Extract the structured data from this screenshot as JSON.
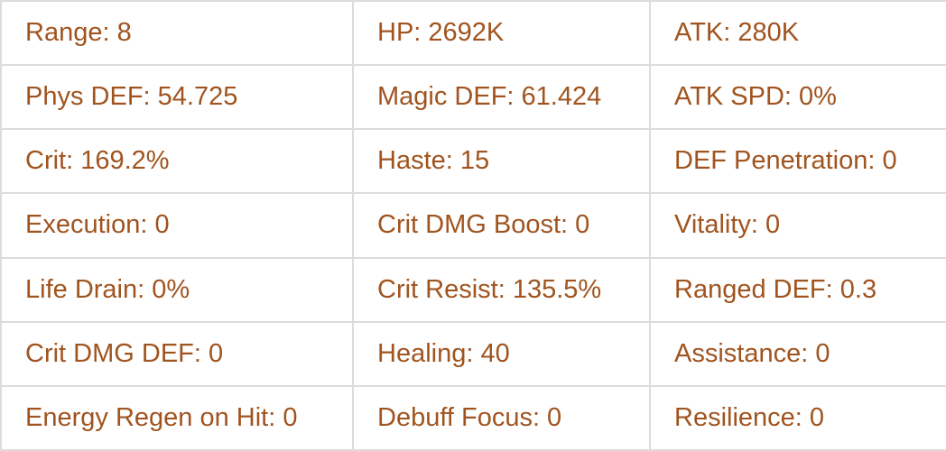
{
  "colors": {
    "text": "#a0541f",
    "border": "#dcdcdc"
  },
  "stats": [
    [
      "Range: 8",
      "HP: 2692K",
      "ATK: 280K"
    ],
    [
      "Phys DEF: 54.725",
      "Magic DEF: 61.424",
      "ATK SPD: 0%"
    ],
    [
      "Crit: 169.2%",
      "Haste: 15",
      "DEF Penetration: 0"
    ],
    [
      "Execution: 0",
      "Crit DMG Boost: 0",
      "Vitality: 0"
    ],
    [
      "Life Drain: 0%",
      "Crit Resist: 135.5%",
      "Ranged DEF: 0.3"
    ],
    [
      "Crit DMG DEF: 0",
      "Healing: 40",
      "Assistance: 0"
    ],
    [
      "Energy Regen on Hit: 0",
      "Debuff Focus: 0",
      "Resilience: 0"
    ]
  ]
}
